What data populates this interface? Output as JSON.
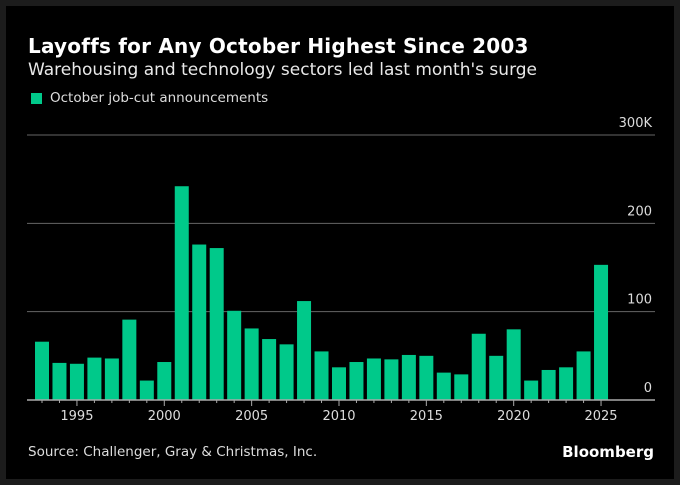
{
  "chart_data": {
    "type": "bar",
    "title": "Layoffs for Any October Highest Since 2003",
    "subtitle": "Warehousing and technology sectors led last month's surge",
    "legend": [
      {
        "name": "October job-cut announcements",
        "color": "#00c98a"
      }
    ],
    "legend_placement": "top-left",
    "xlabel": "",
    "ylabel": "",
    "x": [
      1993,
      1994,
      1995,
      1996,
      1997,
      1998,
      1999,
      2000,
      2001,
      2002,
      2003,
      2004,
      2005,
      2006,
      2007,
      2008,
      2009,
      2010,
      2011,
      2012,
      2013,
      2014,
      2015,
      2016,
      2017,
      2018,
      2019,
      2020,
      2021,
      2022,
      2023,
      2024,
      2025
    ],
    "series": [
      {
        "name": "October job-cut announcements",
        "unit": "thousands",
        "values": [
          66,
          42,
          41,
          48,
          47,
          91,
          22,
          43,
          242,
          176,
          172,
          101,
          81,
          69,
          63,
          112,
          55,
          37,
          43,
          47,
          46,
          51,
          50,
          31,
          29,
          75,
          50,
          80,
          22,
          34,
          37,
          55,
          153
        ]
      }
    ],
    "ylim": [
      0,
      300
    ],
    "yticks": [
      {
        "value": 0,
        "label": "0"
      },
      {
        "value": 100,
        "label": "100"
      },
      {
        "value": 200,
        "label": "200"
      },
      {
        "value": 300,
        "label": "300K"
      }
    ],
    "xticks": [
      {
        "value": 1995,
        "label": "1995"
      },
      {
        "value": 2000,
        "label": "2000"
      },
      {
        "value": 2005,
        "label": "2005"
      },
      {
        "value": 2010,
        "label": "2010"
      },
      {
        "value": 2015,
        "label": "2015"
      },
      {
        "value": 2020,
        "label": "2020"
      },
      {
        "value": 2025,
        "label": "2025"
      }
    ],
    "y_axis_position": "right",
    "grid": true
  },
  "footer": {
    "source": "Source: Challenger, Gray & Christmas, Inc.",
    "brand": "Bloomberg"
  }
}
